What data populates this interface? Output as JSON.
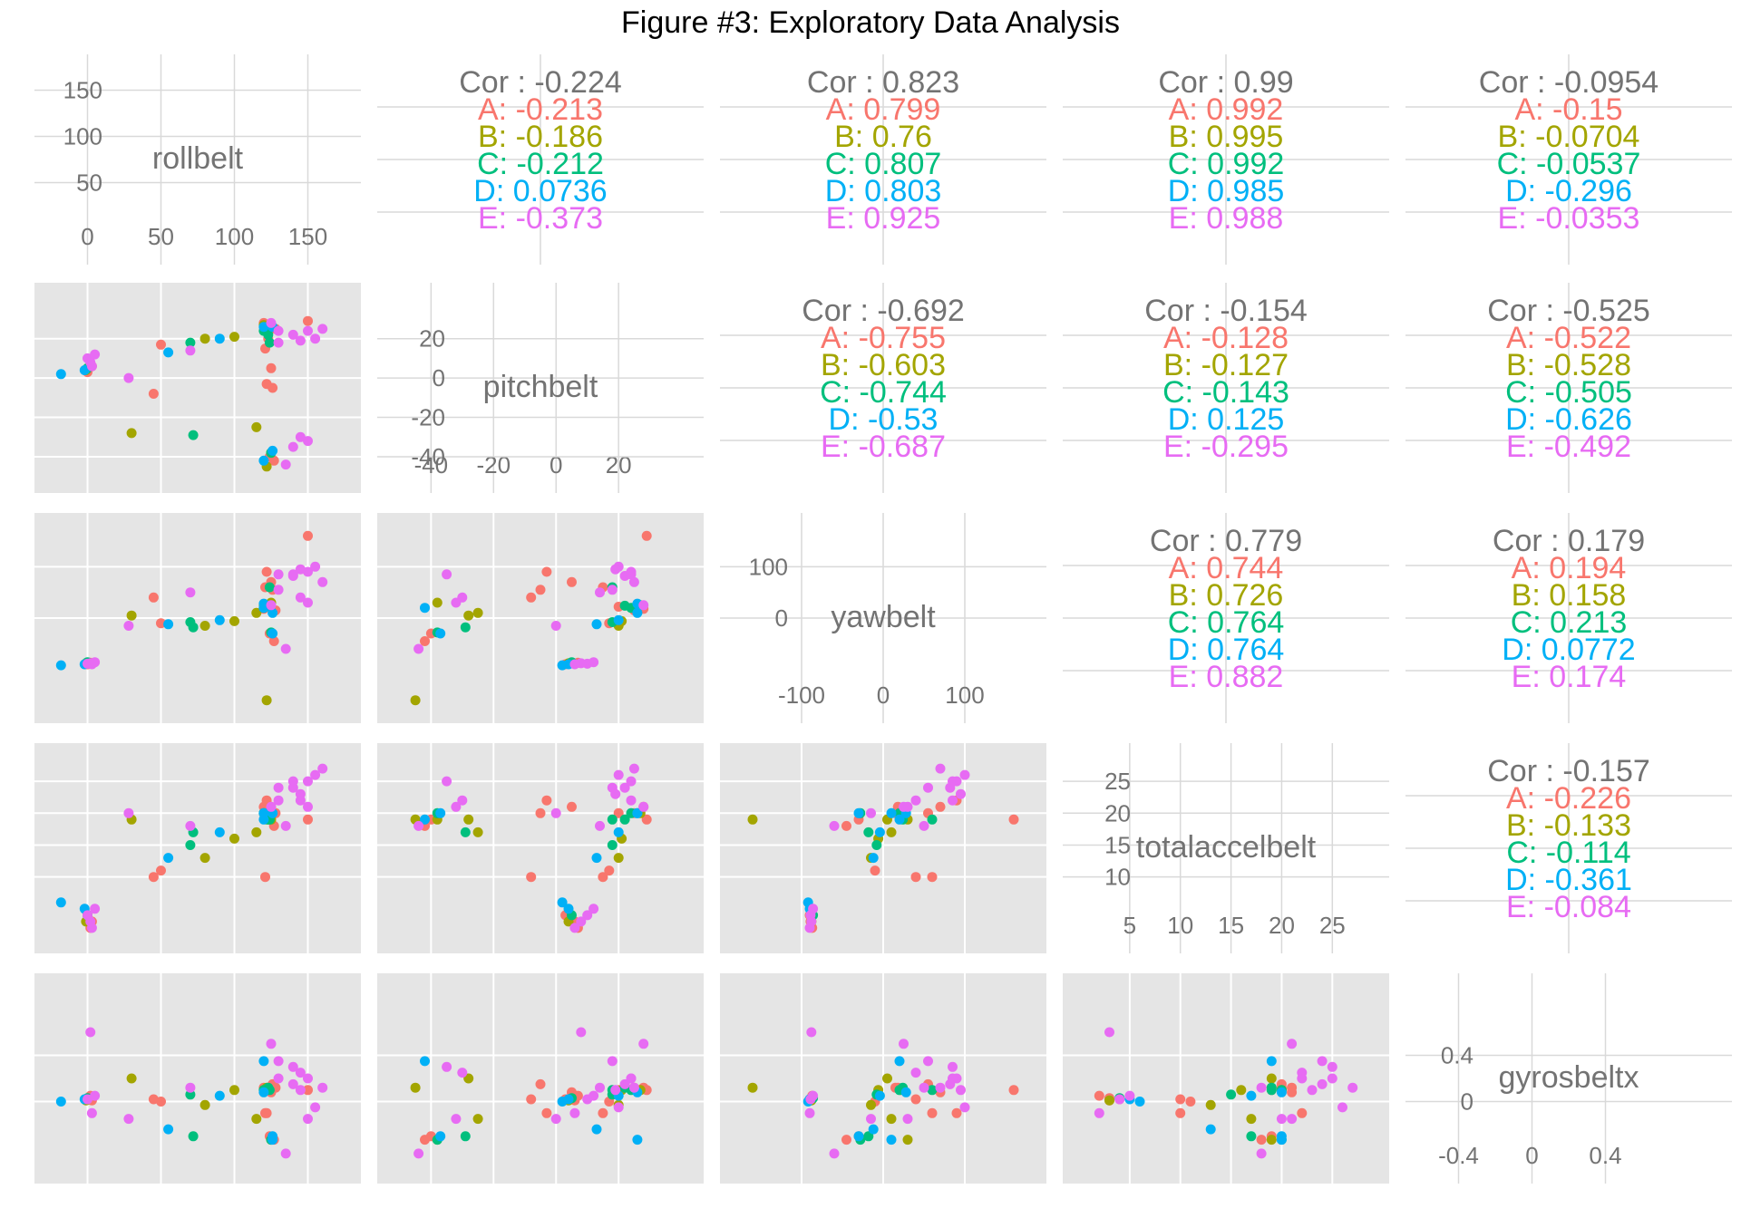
{
  "title": "Figure #3: Exploratory Data Analysis",
  "colors": {
    "A": "#F8766D",
    "B": "#A3A500",
    "C": "#00BF7D",
    "D": "#00B0F6",
    "E": "#E76BF3",
    "panel_bg": "#E5E5E5",
    "grid_major": "#FFFFFF",
    "diag_grid": "#D9D9D9",
    "text_gray": "#737373"
  },
  "chart_data": {
    "type": "scatter",
    "variables": [
      "rollbelt",
      "pitchbelt",
      "yawbelt",
      "totalaccelbelt",
      "gyrosbeltx"
    ],
    "groups": [
      "A",
      "B",
      "C",
      "D",
      "E"
    ],
    "diagonal": [
      {
        "label": "rollbelt",
        "range": [
          -25,
          175
        ],
        "xticks": [
          "0",
          "50",
          "100",
          "150"
        ],
        "xtick_values": [
          0,
          50,
          100,
          150
        ],
        "yticks": [
          "50",
          "100",
          "150"
        ],
        "ytick_values": [
          50,
          100,
          150
        ]
      },
      {
        "label": "pitchbelt",
        "range": [
          -52,
          42
        ],
        "xticks": [
          "-40",
          "-20",
          "0",
          "20"
        ],
        "xtick_values": [
          -40,
          -20,
          0,
          20
        ],
        "yticks": [
          "-40",
          "-20",
          "0",
          "20"
        ],
        "ytick_values": [
          -40,
          -20,
          0,
          20
        ]
      },
      {
        "label": "yawbelt",
        "range": [
          -180,
          180
        ],
        "xticks": [
          "-100",
          "0",
          "100"
        ],
        "xtick_values": [
          -100,
          0,
          100
        ],
        "yticks": [
          "0",
          "100"
        ],
        "ytick_values": [
          0,
          100
        ]
      },
      {
        "label": "totalaccelbelt",
        "range": [
          0,
          29
        ],
        "xticks": [
          "5",
          "10",
          "15",
          "20",
          "25"
        ],
        "xtick_values": [
          5,
          10,
          15,
          20,
          25
        ],
        "yticks": [
          "10",
          "15",
          "20",
          "25"
        ],
        "ytick_values": [
          10,
          15,
          20,
          25
        ]
      },
      {
        "label": "gyrosbeltx",
        "range": [
          -0.6,
          1.0
        ],
        "xticks": [
          "-0.4",
          "0",
          "0.4"
        ],
        "xtick_values": [
          -0.4,
          0,
          0.4
        ],
        "yticks": [
          "0",
          "0.4"
        ],
        "ytick_values": [
          0,
          0.4
        ]
      }
    ],
    "correlations": [
      {
        "row": 0,
        "col": 1,
        "overall": "Cor : -0.224",
        "groups": [
          "A: -0.213",
          "B: -0.186",
          "C: -0.212",
          "D: 0.0736",
          "E: -0.373"
        ]
      },
      {
        "row": 0,
        "col": 2,
        "overall": "Cor : 0.823",
        "groups": [
          "A: 0.799",
          "B: 0.76",
          "C: 0.807",
          "D: 0.803",
          "E: 0.925"
        ]
      },
      {
        "row": 0,
        "col": 3,
        "overall": "Cor : 0.99",
        "groups": [
          "A: 0.992",
          "B: 0.995",
          "C: 0.992",
          "D: 0.985",
          "E: 0.988"
        ]
      },
      {
        "row": 0,
        "col": 4,
        "overall": "Cor : -0.0954",
        "groups": [
          "A: -0.15",
          "B: -0.0704",
          "C: -0.0537",
          "D: -0.296",
          "E: -0.0353"
        ]
      },
      {
        "row": 1,
        "col": 2,
        "overall": "Cor : -0.692",
        "groups": [
          "A: -0.755",
          "B: -0.603",
          "C: -0.744",
          "D: -0.53",
          "E: -0.687"
        ]
      },
      {
        "row": 1,
        "col": 3,
        "overall": "Cor : -0.154",
        "groups": [
          "A: -0.128",
          "B: -0.127",
          "C: -0.143",
          "D: 0.125",
          "E: -0.295"
        ]
      },
      {
        "row": 1,
        "col": 4,
        "overall": "Cor : -0.525",
        "groups": [
          "A: -0.522",
          "B: -0.528",
          "C: -0.505",
          "D: -0.626",
          "E: -0.492"
        ]
      },
      {
        "row": 2,
        "col": 3,
        "overall": "Cor : 0.779",
        "groups": [
          "A: 0.744",
          "B: 0.726",
          "C: 0.764",
          "D: 0.764",
          "E: 0.882"
        ]
      },
      {
        "row": 2,
        "col": 4,
        "overall": "Cor : 0.179",
        "groups": [
          "A: 0.194",
          "B: 0.158",
          "C: 0.213",
          "D: 0.0772",
          "E: 0.174"
        ]
      },
      {
        "row": 3,
        "col": 4,
        "overall": "Cor : -0.157",
        "groups": [
          "A: -0.226",
          "B: -0.133",
          "C: -0.114",
          "D: -0.361",
          "E: -0.084"
        ]
      }
    ],
    "points": [
      {
        "g": "A",
        "v": [
          0,
          3,
          -90,
          4,
          0.02
        ]
      },
      {
        "g": "A",
        "v": [
          1,
          5,
          -88,
          3,
          0.03
        ]
      },
      {
        "g": "A",
        "v": [
          2,
          7,
          -87,
          2,
          0.05
        ]
      },
      {
        "g": "A",
        "v": [
          3,
          6,
          -89,
          3,
          0.01
        ]
      },
      {
        "g": "A",
        "v": [
          50,
          17,
          -10,
          11,
          0.0
        ]
      },
      {
        "g": "A",
        "v": [
          45,
          -8,
          40,
          10,
          0.02
        ]
      },
      {
        "g": "A",
        "v": [
          120,
          28,
          18,
          21,
          0.12
        ]
      },
      {
        "g": "A",
        "v": [
          123,
          20,
          22,
          20,
          0.1
        ]
      },
      {
        "g": "A",
        "v": [
          125,
          5,
          70,
          21,
          0.08
        ]
      },
      {
        "g": "A",
        "v": [
          122,
          -3,
          90,
          22,
          -0.1
        ]
      },
      {
        "g": "A",
        "v": [
          126,
          -5,
          55,
          20,
          0.15
        ]
      },
      {
        "g": "A",
        "v": [
          128,
          25,
          15,
          20,
          0.12
        ]
      },
      {
        "g": "A",
        "v": [
          124,
          -40,
          -30,
          19,
          -0.3
        ]
      },
      {
        "g": "A",
        "v": [
          127,
          -42,
          -45,
          18,
          -0.33
        ]
      },
      {
        "g": "A",
        "v": [
          150,
          29,
          160,
          19,
          0.1
        ]
      },
      {
        "g": "A",
        "v": [
          121,
          15,
          60,
          10,
          -0.1
        ]
      },
      {
        "g": "B",
        "v": [
          -1,
          4,
          -88,
          3,
          0.01
        ]
      },
      {
        "g": "B",
        "v": [
          80,
          20,
          -15,
          13,
          -0.03
        ]
      },
      {
        "g": "B",
        "v": [
          115,
          -25,
          10,
          17,
          -0.15
        ]
      },
      {
        "g": "B",
        "v": [
          120,
          27,
          25,
          20,
          0.1
        ]
      },
      {
        "g": "B",
        "v": [
          122,
          -45,
          -160,
          19,
          0.12
        ]
      },
      {
        "g": "B",
        "v": [
          125,
          -38,
          30,
          19,
          -0.33
        ]
      },
      {
        "g": "B",
        "v": [
          100,
          21,
          -6,
          16,
          0.1
        ]
      },
      {
        "g": "B",
        "v": [
          30,
          -28,
          5,
          19,
          0.2
        ]
      },
      {
        "g": "C",
        "v": [
          0,
          5,
          -86,
          4,
          0.03
        ]
      },
      {
        "g": "C",
        "v": [
          70,
          18,
          -8,
          15,
          0.06
        ]
      },
      {
        "g": "C",
        "v": [
          120,
          24,
          20,
          20,
          0.1
        ]
      },
      {
        "g": "C",
        "v": [
          123,
          22,
          24,
          19,
          0.12
        ]
      },
      {
        "g": "C",
        "v": [
          125,
          -38,
          -28,
          20,
          -0.33
        ]
      },
      {
        "g": "C",
        "v": [
          124,
          18,
          60,
          19,
          0.1
        ]
      },
      {
        "g": "C",
        "v": [
          72,
          -29,
          -18,
          17,
          -0.3
        ]
      },
      {
        "g": "D",
        "v": [
          -18,
          2,
          -92,
          6,
          0.0
        ]
      },
      {
        "g": "D",
        "v": [
          -2,
          4,
          -90,
          5,
          0.02
        ]
      },
      {
        "g": "D",
        "v": [
          55,
          13,
          -12,
          13,
          -0.24
        ]
      },
      {
        "g": "D",
        "v": [
          90,
          20,
          -4,
          17,
          0.05
        ]
      },
      {
        "g": "D",
        "v": [
          120,
          26,
          28,
          20,
          0.08
        ]
      },
      {
        "g": "D",
        "v": [
          126,
          -37,
          -30,
          20,
          -0.3
        ]
      },
      {
        "g": "D",
        "v": [
          120,
          -42,
          20,
          19,
          0.35
        ]
      },
      {
        "g": "D",
        "v": [
          126,
          26,
          10,
          20,
          -0.33
        ]
      },
      {
        "g": "E",
        "v": [
          0,
          10,
          -89,
          4,
          0.02
        ]
      },
      {
        "g": "E",
        "v": [
          2,
          8,
          -88,
          3,
          0.6
        ]
      },
      {
        "g": "E",
        "v": [
          3,
          6,
          -90,
          2,
          -0.1
        ]
      },
      {
        "g": "E",
        "v": [
          28,
          0,
          -15,
          20,
          -0.15
        ]
      },
      {
        "g": "E",
        "v": [
          70,
          14,
          50,
          18,
          0.12
        ]
      },
      {
        "g": "E",
        "v": [
          130,
          18,
          55,
          24,
          0.35
        ]
      },
      {
        "g": "E",
        "v": [
          140,
          22,
          82,
          24,
          0.15
        ]
      },
      {
        "g": "E",
        "v": [
          150,
          24,
          90,
          25,
          0.2
        ]
      },
      {
        "g": "E",
        "v": [
          160,
          25,
          70,
          27,
          0.12
        ]
      },
      {
        "g": "E",
        "v": [
          155,
          20,
          100,
          26,
          -0.05
        ]
      },
      {
        "g": "E",
        "v": [
          145,
          19,
          95,
          23,
          0.1
        ]
      },
      {
        "g": "E",
        "v": [
          130,
          24,
          85,
          22,
          0.2
        ]
      },
      {
        "g": "E",
        "v": [
          140,
          -35,
          85,
          25,
          0.3
        ]
      },
      {
        "g": "E",
        "v": [
          145,
          -30,
          40,
          22,
          0.25
        ]
      },
      {
        "g": "E",
        "v": [
          150,
          -32,
          30,
          21,
          -0.15
        ]
      },
      {
        "g": "E",
        "v": [
          135,
          -44,
          -60,
          18,
          -0.45
        ]
      },
      {
        "g": "E",
        "v": [
          125,
          28,
          25,
          21,
          0.5
        ]
      },
      {
        "g": "E",
        "v": [
          5,
          12,
          -86,
          5,
          0.05
        ]
      }
    ]
  }
}
